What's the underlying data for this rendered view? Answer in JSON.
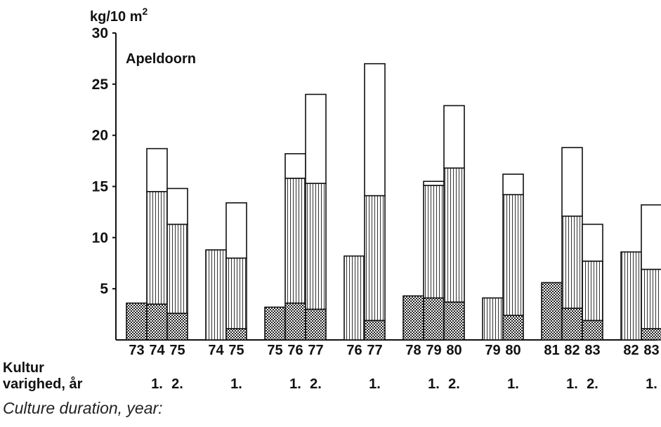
{
  "chart_data": {
    "type": "bar",
    "stacked": true,
    "title": "Apeldoorn",
    "y_unit_prefix": "kg/10 m",
    "y_unit_superscript": "2",
    "ylim": [
      0,
      30
    ],
    "yticks": [
      5,
      10,
      15,
      20,
      25,
      30
    ],
    "grid": false,
    "legend": "none",
    "segments": [
      "cross-hatched (bottom)",
      "vertical lines (middle)",
      "open (top)"
    ],
    "groups": [
      {
        "duration": [
          "1.",
          "2."
        ],
        "bars": [
          {
            "x_label": "73",
            "values": [
              3.6,
              0,
              0
            ]
          },
          {
            "x_label": "74",
            "values": [
              3.5,
              11.0,
              4.2
            ]
          },
          {
            "x_label": "75",
            "values": [
              2.6,
              8.7,
              3.5
            ]
          }
        ]
      },
      {
        "duration": [
          "1."
        ],
        "bars": [
          {
            "x_label": "74",
            "values": [
              0,
              8.8,
              0
            ]
          },
          {
            "x_label": "75",
            "values": [
              1.1,
              6.9,
              5.4
            ]
          }
        ]
      },
      {
        "duration": [
          "1.",
          "2."
        ],
        "bars": [
          {
            "x_label": "75",
            "values": [
              3.2,
              0,
              0
            ]
          },
          {
            "x_label": "76",
            "values": [
              3.6,
              12.2,
              2.4
            ]
          },
          {
            "x_label": "77",
            "values": [
              3.0,
              12.3,
              8.7
            ]
          }
        ]
      },
      {
        "duration": [
          "1."
        ],
        "bars": [
          {
            "x_label": "76",
            "values": [
              0,
              8.2,
              0
            ]
          },
          {
            "x_label": "77",
            "values": [
              1.9,
              12.2,
              12.9
            ]
          }
        ]
      },
      {
        "duration": [
          "1.",
          "2."
        ],
        "bars": [
          {
            "x_label": "78",
            "values": [
              4.3,
              0,
              0
            ]
          },
          {
            "x_label": "79",
            "values": [
              4.1,
              11.0,
              0.4
            ]
          },
          {
            "x_label": "80",
            "values": [
              3.7,
              13.1,
              6.1
            ]
          }
        ]
      },
      {
        "duration": [
          "1."
        ],
        "bars": [
          {
            "x_label": "79",
            "values": [
              0,
              4.1,
              0
            ]
          },
          {
            "x_label": "80",
            "values": [
              2.4,
              11.8,
              2.0
            ]
          }
        ]
      },
      {
        "duration": [
          "1.",
          "2."
        ],
        "bars": [
          {
            "x_label": "81",
            "values": [
              5.6,
              0,
              0
            ]
          },
          {
            "x_label": "82",
            "values": [
              3.1,
              9.0,
              6.7
            ]
          },
          {
            "x_label": "83",
            "values": [
              1.9,
              5.8,
              3.6
            ]
          }
        ]
      },
      {
        "duration": [
          "1."
        ],
        "bars": [
          {
            "x_label": "82",
            "values": [
              0,
              8.6,
              0
            ]
          },
          {
            "x_label": "83",
            "values": [
              1.1,
              5.8,
              6.3
            ]
          }
        ]
      }
    ]
  },
  "row_label_line1": "Kultur",
  "row_label_line2": "varighed, år",
  "caption": "Culture duration, year:",
  "colors": {
    "ink": "#111111",
    "background": "#ffffff"
  }
}
